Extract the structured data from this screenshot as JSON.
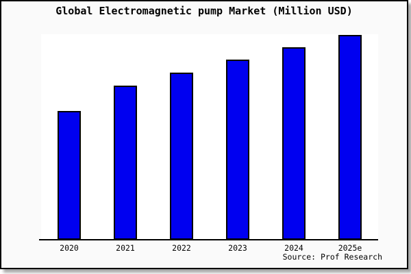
{
  "title": "Global Electromagnetic pump Market (Million USD)",
  "source": "Source: Prof Research",
  "colors": {
    "bar_fill": "#0000F0",
    "bar_border": "#000000",
    "frame_background": "#FAFAFA",
    "plot_background": "#FFFFFF",
    "axis": "#000000",
    "frame_border": "#000000"
  },
  "chart_data": {
    "type": "bar",
    "title": "Global Electromagnetic pump Market (Million USD)",
    "categories": [
      "2020",
      "2021",
      "2022",
      "2023",
      "2024",
      "2025e"
    ],
    "values": [
      188,
      225,
      244,
      263,
      281,
      299
    ],
    "unit": "relative bar height in px (y-axis has no tick labels; values estimated from pixels)",
    "xlabel": "",
    "ylabel": "",
    "ylim": [
      0,
      300
    ],
    "grid": false,
    "legend": "none",
    "y_axis_labels": "none",
    "annotation": "Source: Prof Research"
  }
}
